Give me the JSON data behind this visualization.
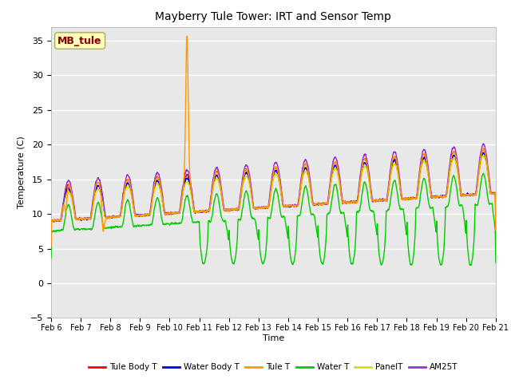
{
  "title": "Mayberry Tule Tower: IRT and Sensor Temp",
  "xlabel": "Time",
  "ylabel": "Temperature (C)",
  "ylim": [
    -5,
    37
  ],
  "yticks": [
    -5,
    0,
    5,
    10,
    15,
    20,
    25,
    30,
    35
  ],
  "xtick_labels": [
    "Feb 6",
    "Feb 7",
    "Feb 8",
    "Feb 9",
    "Feb 10",
    "Feb 11",
    "Feb 12",
    "Feb 13",
    "Feb 14",
    "Feb 15",
    "Feb 16",
    "Feb 17",
    "Feb 18",
    "Feb 19",
    "Feb 20",
    "Feb 21"
  ],
  "watermark_text": "MB_tule",
  "watermark_color": "#880000",
  "watermark_bg": "#ffffbb",
  "watermark_border": "#aaaa66",
  "colors": {
    "Tule Body T": "#ff0000",
    "Water Body T": "#0000ee",
    "Tule T": "#ff9900",
    "Water T": "#00cc00",
    "PanelT": "#dddd00",
    "AM25T": "#9933cc"
  },
  "bg_color": "#e8e8e8",
  "grid_color": "#ffffff",
  "line_width": 1.0,
  "legend_labels": [
    "Tule Body T",
    "Water Body T",
    "Tule T",
    "Water T",
    "PanelT",
    "AM25T"
  ]
}
